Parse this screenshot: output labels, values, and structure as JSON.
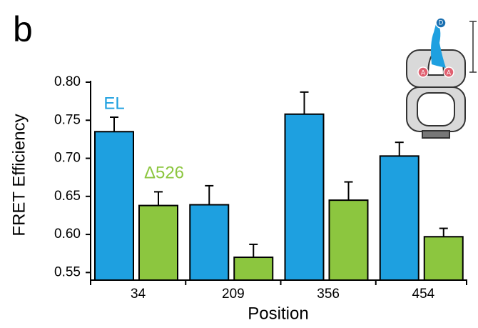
{
  "chart_data": {
    "type": "bar",
    "panel_label": "b",
    "x_label": "Position",
    "y_label": "FRET Efficiency",
    "categories": [
      "34",
      "209",
      "356",
      "454"
    ],
    "series": [
      {
        "name": "EL",
        "color": "#1ea0e0",
        "values": [
          0.735,
          0.639,
          0.758,
          0.703
        ],
        "errors": [
          0.019,
          0.025,
          0.029,
          0.018
        ]
      },
      {
        "name": "Δ526",
        "color": "#8cc63f",
        "values": [
          0.638,
          0.57,
          0.645,
          0.597
        ],
        "errors": [
          0.018,
          0.017,
          0.024,
          0.011
        ]
      }
    ],
    "ylim": [
      0.54,
      0.8
    ],
    "yticks": [
      0.55,
      {
        "value": 0.6,
        "label": "0.60"
      },
      0.65,
      {
        "value": 0.7,
        "label": "0.70"
      },
      0.75,
      {
        "value": 0.8,
        "label": "0.80"
      }
    ],
    "inset_labels": [
      "D",
      "A",
      "A"
    ]
  }
}
